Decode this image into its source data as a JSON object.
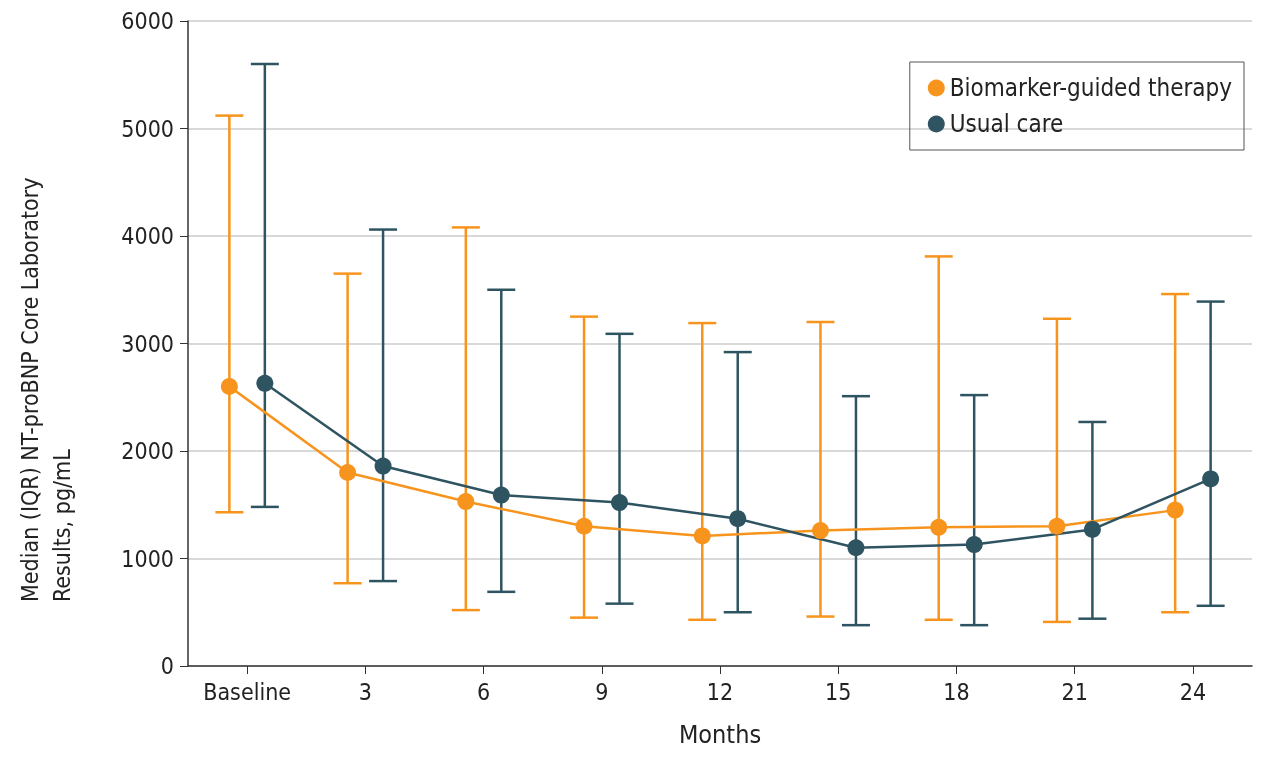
{
  "chart_data": {
    "type": "line",
    "xlabel": "Months",
    "ylabel": "Median (IQR) NT-proBNP Core Laboratory Results, pg/mL",
    "categories": [
      "Baseline",
      "3",
      "6",
      "9",
      "12",
      "15",
      "18",
      "21",
      "24"
    ],
    "series": [
      {
        "name": "Biomarker-guided therapy",
        "color": "#f7941d",
        "values": [
          2600,
          1800,
          1530,
          1300,
          1210,
          1260,
          1290,
          1300,
          1450
        ],
        "errors": [
          [
            1430,
            5120
          ],
          [
            770,
            3650
          ],
          [
            520,
            4080
          ],
          [
            450,
            3250
          ],
          [
            430,
            3190
          ],
          [
            460,
            3200
          ],
          [
            430,
            3810
          ],
          [
            410,
            3230
          ],
          [
            500,
            3460
          ]
        ]
      },
      {
        "name": "Usual care",
        "color": "#2f5461",
        "values": [
          2630,
          1860,
          1590,
          1520,
          1370,
          1100,
          1130,
          1270,
          1740
        ],
        "errors": [
          [
            1480,
            5600
          ],
          [
            790,
            4060
          ],
          [
            690,
            3500
          ],
          [
            580,
            3090
          ],
          [
            500,
            2920
          ],
          [
            380,
            2510
          ],
          [
            380,
            2520
          ],
          [
            440,
            2270
          ],
          [
            560,
            3390
          ]
        ]
      }
    ],
    "ylim": [
      0,
      6000
    ],
    "yticks": [
      0,
      1000,
      2000,
      3000,
      4000,
      5000,
      6000
    ],
    "grid": "y",
    "legend": "top right",
    "marker": "circle",
    "line_style": "solid"
  }
}
